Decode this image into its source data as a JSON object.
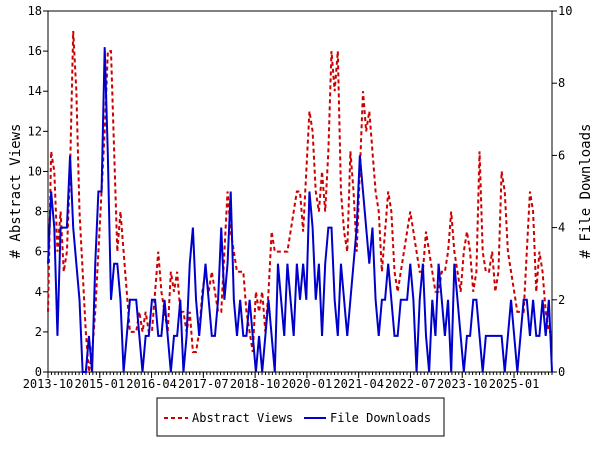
{
  "chart_data": {
    "type": "line",
    "ylabel_left": "# Abstract Views",
    "ylabel_right": "# File Downloads",
    "ylim_left": [
      0,
      18
    ],
    "ylim_right": [
      0,
      10
    ],
    "yticks_left": [
      "0",
      "2",
      "4",
      "6",
      "8",
      "10",
      "12",
      "14",
      "16",
      "18"
    ],
    "yticks_right": [
      "0",
      "2",
      "4",
      "6",
      "8",
      "10"
    ],
    "xticks": [
      "2013-10",
      "2015-01",
      "2016-04",
      "2017-07",
      "2018-10",
      "2020-01",
      "2021-04",
      "2022-07",
      "2023-10",
      "2025-01"
    ],
    "grid": false,
    "legend_position": "bottom",
    "series": [
      {
        "name": "Abstract Views",
        "axis": "left",
        "color": "#cc0000",
        "style": "dashed",
        "values": [
          3,
          11,
          10,
          6,
          8,
          5,
          6,
          10,
          17,
          14,
          8,
          5,
          2,
          0,
          1,
          3,
          6,
          9,
          12,
          16,
          16,
          11,
          6,
          8,
          6,
          4,
          2,
          2,
          2,
          3,
          2,
          3,
          2,
          2,
          4,
          6,
          4,
          3,
          2,
          5,
          4,
          5,
          3,
          3,
          2,
          3,
          1,
          1,
          2,
          4,
          5,
          4,
          5,
          4,
          3,
          3,
          6,
          9,
          7,
          6,
          5,
          5,
          5,
          3,
          2,
          1,
          4,
          3,
          4,
          2,
          4,
          7,
          6,
          6,
          6,
          6,
          6,
          7,
          8,
          9,
          9,
          7,
          10,
          13,
          12,
          9,
          8,
          10,
          8,
          11,
          16,
          14,
          16,
          9,
          7,
          6,
          11,
          9,
          6,
          10,
          14,
          12,
          13,
          11,
          9,
          8,
          5,
          7,
          9,
          8,
          5,
          4,
          5,
          6,
          7,
          8,
          7,
          6,
          5,
          5,
          7,
          6,
          5,
          4,
          4,
          5,
          5,
          6,
          8,
          6,
          5,
          4,
          6,
          7,
          6,
          4,
          5,
          11,
          6,
          5,
          5,
          6,
          4,
          5,
          10,
          9,
          6,
          5,
          4,
          3,
          3,
          3,
          6,
          9,
          8,
          4,
          6,
          5,
          3,
          2,
          2
        ]
      },
      {
        "name": "File Downloads",
        "axis": "right",
        "color": "#0000cc",
        "style": "solid",
        "values": [
          3,
          5,
          4,
          1,
          4,
          4,
          4,
          6,
          4,
          3,
          2,
          0,
          0,
          1,
          0,
          3,
          5,
          5,
          9,
          6,
          2,
          3,
          3,
          2,
          0,
          1,
          2,
          2,
          2,
          1,
          0,
          1,
          1,
          2,
          2,
          1,
          1,
          2,
          1,
          0,
          1,
          1,
          2,
          0,
          1,
          3,
          4,
          2,
          1,
          2,
          3,
          2,
          1,
          1,
          2,
          4,
          2,
          3,
          5,
          2,
          1,
          2,
          1,
          1,
          2,
          1,
          0,
          1,
          0,
          1,
          2,
          1,
          0,
          3,
          2,
          1,
          3,
          2,
          1,
          3,
          2,
          3,
          2,
          5,
          4,
          2,
          3,
          1,
          3,
          4,
          4,
          2,
          1,
          3,
          2,
          1,
          2,
          3,
          4,
          6,
          5,
          4,
          3,
          4,
          2,
          1,
          2,
          2,
          3,
          2,
          1,
          1,
          2,
          2,
          2,
          3,
          2,
          0,
          2,
          3,
          1,
          0,
          2,
          1,
          3,
          2,
          1,
          2,
          0,
          3,
          2,
          1,
          0,
          1,
          1,
          2,
          2,
          1,
          0,
          1,
          1,
          1,
          1,
          1,
          1,
          0,
          1,
          2,
          1,
          0,
          1,
          2,
          2,
          1,
          2,
          1,
          1,
          2,
          1,
          2,
          0
        ]
      }
    ]
  }
}
